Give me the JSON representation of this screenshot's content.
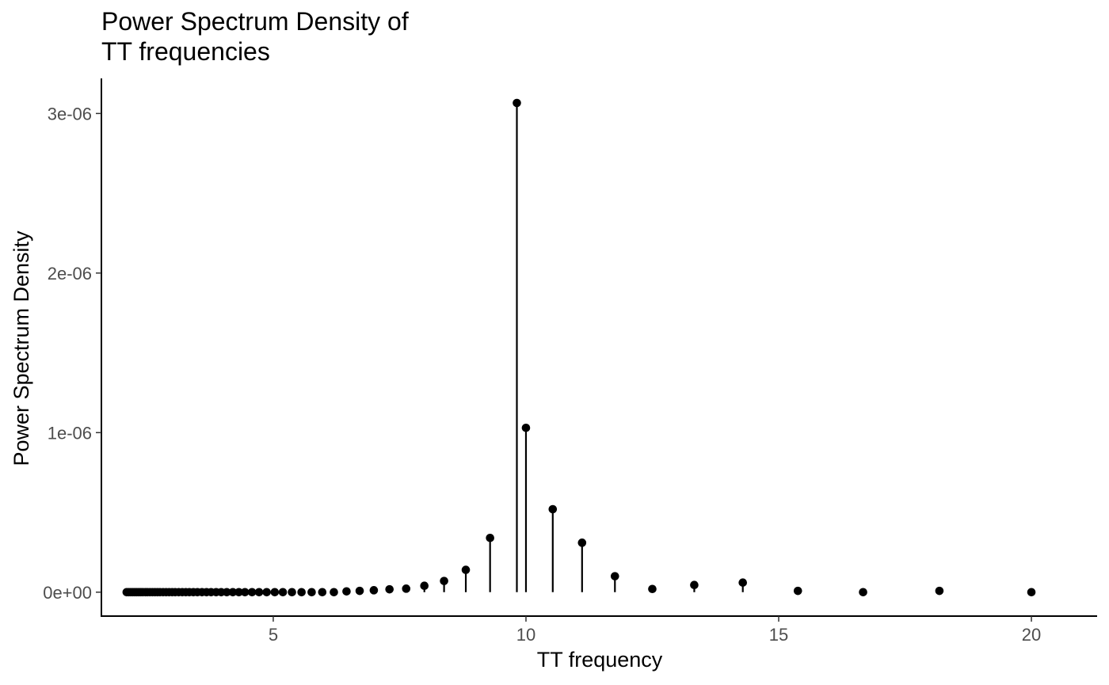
{
  "chart_data": {
    "type": "lollipop",
    "title_lines": [
      "Power Spectrum Density of",
      "TT frequencies"
    ],
    "xlabel": "TT frequency",
    "ylabel": "Power Spectrum Density",
    "xlim": [
      1.6,
      21.3
    ],
    "ylim": [
      -1.5e-07,
      3.22e-06
    ],
    "x_ticks": [
      5,
      10,
      15,
      20
    ],
    "x_tick_labels": [
      "5",
      "10",
      "15",
      "20"
    ],
    "y_ticks": [
      0,
      1e-06,
      2e-06,
      3e-06
    ],
    "y_tick_labels": [
      "0e+00",
      "1e-06",
      "2e-06",
      "3e-06"
    ],
    "grid": false,
    "legend": "none",
    "series": [
      {
        "x": [
          2.1,
          2.14,
          2.18,
          2.22,
          2.26,
          2.3,
          2.34,
          2.38,
          2.42,
          2.47,
          2.51,
          2.56,
          2.61,
          2.66,
          2.71,
          2.76,
          2.82,
          2.88,
          2.94,
          3.0,
          3.06,
          3.13,
          3.2,
          3.27,
          3.34,
          3.42,
          3.5,
          3.59,
          3.68,
          3.77,
          3.87,
          3.97,
          4.08,
          4.2,
          4.32,
          4.44,
          4.58,
          4.72,
          4.87,
          5.03,
          5.19,
          5.37,
          5.56,
          5.76,
          5.97,
          6.2,
          6.45,
          6.71,
          6.99,
          7.3,
          7.63,
          7.99,
          8.38,
          8.81,
          9.29,
          9.82,
          10.0,
          10.53,
          11.11,
          11.76,
          12.5,
          13.33,
          14.29,
          15.38,
          16.67,
          18.18,
          20.0
        ],
        "y": [
          0,
          0,
          0,
          0,
          0,
          0,
          0,
          0,
          0,
          0,
          0,
          0,
          0,
          0,
          0,
          0,
          0,
          0,
          0,
          0,
          0,
          0,
          0,
          0,
          0,
          0,
          0,
          0,
          0,
          0,
          0,
          0,
          0,
          0,
          0,
          0,
          0,
          0,
          0,
          0,
          0,
          0,
          0,
          0,
          0,
          0,
          5e-09,
          8e-09,
          1.2e-08,
          1.8e-08,
          2.2e-08,
          4e-08,
          7e-08,
          1.4e-07,
          3.4e-07,
          3.066e-06,
          1.03e-06,
          5.2e-07,
          3.1e-07,
          1e-07,
          2e-08,
          4.5e-08,
          6e-08,
          8e-09,
          0,
          8e-09,
          0
        ]
      }
    ]
  }
}
